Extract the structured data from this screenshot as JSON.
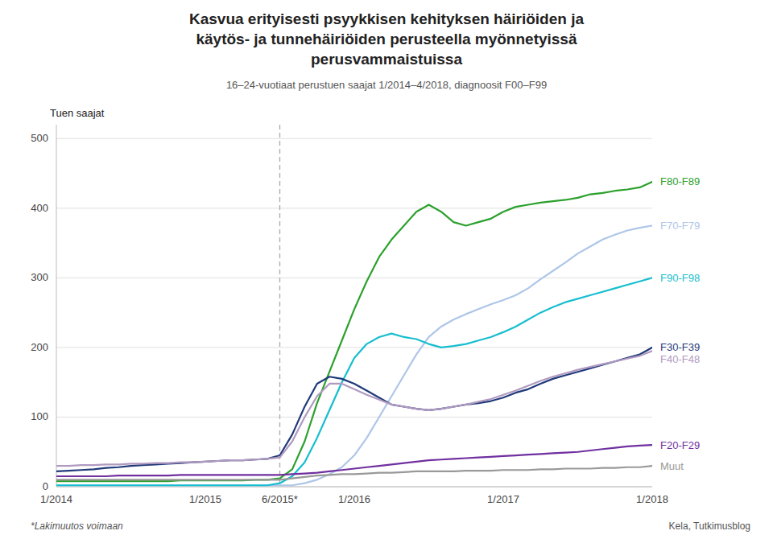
{
  "chart_data": {
    "type": "line",
    "title": "Kasvua erityisesti psyykkisen kehityksen häiriöiden ja\nkäytös- ja tunnehäiriöiden perusteella myönnetyissä\nperusvammaistuissa",
    "subtitle": "16–24-vuotiaat perustuen saajat 1/2014–4/2018, diagnoosit F00–F99",
    "ylabel": "Tuen saajat",
    "footnote": "*Lakimuutos voimaan",
    "source": "Kela, Tutkimusblog",
    "categories": [
      "1/2014",
      null,
      null,
      null,
      null,
      null,
      null,
      null,
      null,
      null,
      null,
      null,
      "1/2015",
      null,
      null,
      null,
      null,
      null,
      "6/2015*",
      null,
      null,
      null,
      null,
      null,
      "1/2016",
      null,
      null,
      null,
      null,
      null,
      null,
      null,
      null,
      null,
      null,
      null,
      "1/2017",
      null,
      null,
      null,
      null,
      null,
      null,
      null,
      null,
      null,
      null,
      null,
      "1/2018"
    ],
    "vline": "6/2015*",
    "ylim": [
      0,
      520
    ],
    "yticks": [
      0,
      100,
      200,
      300,
      400,
      500
    ],
    "grid": true,
    "legend": "right",
    "series": [
      {
        "name": "F80-F89",
        "color": "#2ca02c",
        "values": [
          8,
          8,
          8,
          8,
          8,
          8,
          8,
          8,
          8,
          8,
          9,
          9,
          9,
          9,
          9,
          9,
          10,
          10,
          12,
          25,
          65,
          120,
          165,
          210,
          255,
          295,
          330,
          355,
          375,
          395,
          405,
          395,
          380,
          375,
          380,
          385,
          395,
          402,
          405,
          408,
          410,
          412,
          415,
          420,
          422,
          425,
          427,
          430,
          438
        ]
      },
      {
        "name": "F70-F79",
        "color": "#aec6e8",
        "values": [
          2,
          2,
          2,
          2,
          2,
          2,
          2,
          2,
          2,
          2,
          2,
          2,
          2,
          2,
          2,
          2,
          2,
          2,
          2,
          2,
          5,
          10,
          18,
          28,
          45,
          70,
          100,
          130,
          160,
          190,
          215,
          230,
          240,
          248,
          255,
          262,
          268,
          275,
          285,
          298,
          310,
          322,
          335,
          345,
          355,
          362,
          368,
          372,
          375
        ]
      },
      {
        "name": "F90-F98",
        "color": "#17becf",
        "values": [
          2,
          2,
          2,
          2,
          2,
          2,
          2,
          2,
          2,
          2,
          2,
          2,
          2,
          2,
          2,
          2,
          2,
          2,
          5,
          15,
          35,
          70,
          110,
          150,
          185,
          205,
          215,
          220,
          215,
          212,
          205,
          200,
          202,
          205,
          210,
          215,
          222,
          230,
          240,
          250,
          258,
          265,
          270,
          275,
          280,
          285,
          290,
          295,
          300
        ]
      },
      {
        "name": "F30-F39",
        "color": "#1f3a7a",
        "values": [
          22,
          23,
          24,
          25,
          27,
          28,
          30,
          31,
          32,
          33,
          34,
          35,
          36,
          37,
          38,
          38,
          39,
          40,
          45,
          75,
          115,
          148,
          158,
          155,
          148,
          138,
          128,
          118,
          115,
          112,
          110,
          112,
          115,
          118,
          120,
          123,
          128,
          135,
          140,
          148,
          155,
          160,
          165,
          170,
          175,
          180,
          185,
          190,
          200
        ]
      },
      {
        "name": "F40-F48",
        "color": "#b09ac0",
        "values": [
          30,
          30,
          31,
          31,
          32,
          32,
          33,
          33,
          34,
          34,
          35,
          35,
          36,
          37,
          38,
          38,
          39,
          40,
          42,
          65,
          100,
          130,
          148,
          148,
          140,
          132,
          125,
          118,
          115,
          112,
          110,
          112,
          115,
          118,
          122,
          126,
          132,
          138,
          145,
          152,
          158,
          163,
          168,
          172,
          176,
          180,
          184,
          188,
          195
        ]
      },
      {
        "name": "F20-F29",
        "color": "#7030a0",
        "values": [
          15,
          15,
          15,
          15,
          15,
          16,
          16,
          16,
          16,
          16,
          17,
          17,
          17,
          17,
          17,
          17,
          17,
          17,
          17,
          18,
          19,
          20,
          22,
          24,
          26,
          28,
          30,
          32,
          34,
          36,
          38,
          39,
          40,
          41,
          42,
          43,
          44,
          45,
          46,
          47,
          48,
          49,
          50,
          52,
          54,
          56,
          58,
          59,
          60
        ]
      },
      {
        "name": "Muut",
        "color": "#999999",
        "values": [
          10,
          10,
          10,
          10,
          10,
          10,
          10,
          10,
          10,
          10,
          10,
          10,
          10,
          10,
          10,
          10,
          10,
          10,
          10,
          12,
          14,
          16,
          17,
          18,
          18,
          19,
          20,
          20,
          21,
          22,
          22,
          22,
          22,
          23,
          23,
          23,
          24,
          24,
          24,
          25,
          25,
          26,
          26,
          26,
          27,
          27,
          28,
          28,
          30
        ]
      }
    ]
  }
}
